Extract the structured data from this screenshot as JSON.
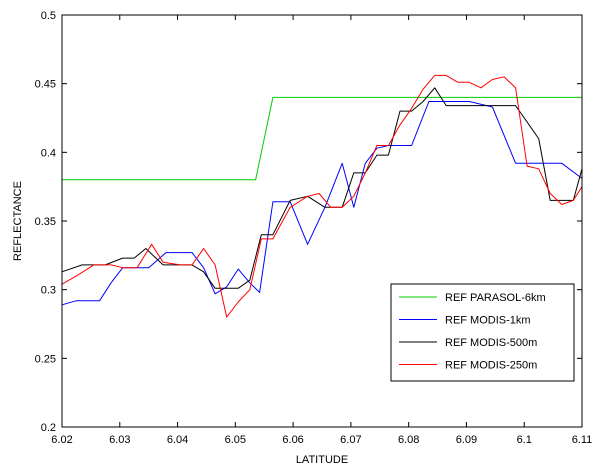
{
  "chart_data": {
    "type": "line",
    "xlabel": "LATITUDE",
    "ylabel": "REFLECTANCE",
    "xlim": [
      6.02,
      6.11
    ],
    "ylim": [
      0.2,
      0.5
    ],
    "xticks": [
      6.02,
      6.03,
      6.04,
      6.05,
      6.06,
      6.07,
      6.08,
      6.09,
      6.1,
      6.11
    ],
    "xtick_labels": [
      "6.02",
      "6.03",
      "6.04",
      "6.05",
      "6.06",
      "6.07",
      "6.08",
      "6.09",
      "6.1",
      "6.11"
    ],
    "yticks": [
      0.2,
      0.25,
      0.3,
      0.35,
      0.4,
      0.45,
      0.5
    ],
    "ytick_labels": [
      "0.2",
      "0.25",
      "0.3",
      "0.35",
      "0.4",
      "0.45",
      "0.5"
    ],
    "grid": false,
    "legend_position": "bottom-right",
    "series": [
      {
        "name": "REF PARASOL-6km",
        "color": "#00cc00",
        "x": [
          6.02,
          6.0535,
          6.0565,
          6.11
        ],
        "y": [
          0.38,
          0.38,
          0.44,
          0.44
        ]
      },
      {
        "name": "REF MODIS-1km",
        "color": "#0000ff",
        "x": [
          6.02,
          6.0225,
          6.0265,
          6.0285,
          6.0305,
          6.035,
          6.038,
          6.0425,
          6.0445,
          6.0465,
          6.0485,
          6.0505,
          6.0525,
          6.0542,
          6.0565,
          6.0595,
          6.0625,
          6.0655,
          6.0685,
          6.0705,
          6.0725,
          6.0745,
          6.0765,
          6.0785,
          6.0805,
          6.0835,
          6.0865,
          6.0905,
          6.0945,
          6.0985,
          6.1065,
          6.11
        ],
        "y": [
          0.289,
          0.292,
          0.292,
          0.305,
          0.316,
          0.316,
          0.327,
          0.327,
          0.316,
          0.297,
          0.302,
          0.315,
          0.305,
          0.298,
          0.364,
          0.364,
          0.333,
          0.36,
          0.392,
          0.36,
          0.392,
          0.403,
          0.405,
          0.405,
          0.405,
          0.437,
          0.437,
          0.437,
          0.433,
          0.392,
          0.392,
          0.381
        ]
      },
      {
        "name": "REF MODIS-500m",
        "color": "#000000",
        "x": [
          6.02,
          6.0235,
          6.0275,
          6.0305,
          6.0325,
          6.0345,
          6.0375,
          6.0405,
          6.0425,
          6.0445,
          6.0465,
          6.0485,
          6.0505,
          6.0525,
          6.0545,
          6.0565,
          6.0595,
          6.0625,
          6.0655,
          6.0685,
          6.0705,
          6.0725,
          6.0745,
          6.0765,
          6.0785,
          6.0805,
          6.0825,
          6.0845,
          6.0865,
          6.0905,
          6.0945,
          6.0985,
          6.1025,
          6.1045,
          6.1085,
          6.11
        ],
        "y": [
          0.313,
          0.318,
          0.318,
          0.323,
          0.323,
          0.33,
          0.318,
          0.318,
          0.318,
          0.313,
          0.301,
          0.301,
          0.301,
          0.307,
          0.34,
          0.34,
          0.365,
          0.368,
          0.36,
          0.36,
          0.385,
          0.385,
          0.398,
          0.398,
          0.43,
          0.43,
          0.437,
          0.447,
          0.434,
          0.434,
          0.434,
          0.434,
          0.41,
          0.365,
          0.365,
          0.388
        ]
      },
      {
        "name": "REF MODIS-250m",
        "color": "#ff0000",
        "x": [
          6.02,
          6.0225,
          6.0255,
          6.0285,
          6.0305,
          6.033,
          6.0355,
          6.0375,
          6.0405,
          6.0425,
          6.0445,
          6.0465,
          6.0485,
          6.0505,
          6.0525,
          6.0545,
          6.0565,
          6.0595,
          6.0625,
          6.0645,
          6.0665,
          6.0685,
          6.0705,
          6.0725,
          6.0745,
          6.0765,
          6.0785,
          6.0805,
          6.0825,
          6.0845,
          6.0865,
          6.0885,
          6.0905,
          6.0925,
          6.0945,
          6.0965,
          6.0985,
          6.1005,
          6.1025,
          6.1045,
          6.1065,
          6.1085,
          6.11
        ],
        "y": [
          0.304,
          0.31,
          0.318,
          0.318,
          0.316,
          0.316,
          0.333,
          0.32,
          0.318,
          0.318,
          0.33,
          0.318,
          0.28,
          0.291,
          0.3,
          0.337,
          0.337,
          0.36,
          0.368,
          0.37,
          0.36,
          0.36,
          0.368,
          0.385,
          0.405,
          0.405,
          0.42,
          0.432,
          0.446,
          0.456,
          0.456,
          0.451,
          0.451,
          0.447,
          0.453,
          0.455,
          0.447,
          0.39,
          0.388,
          0.37,
          0.362,
          0.365,
          0.375
        ]
      }
    ]
  }
}
